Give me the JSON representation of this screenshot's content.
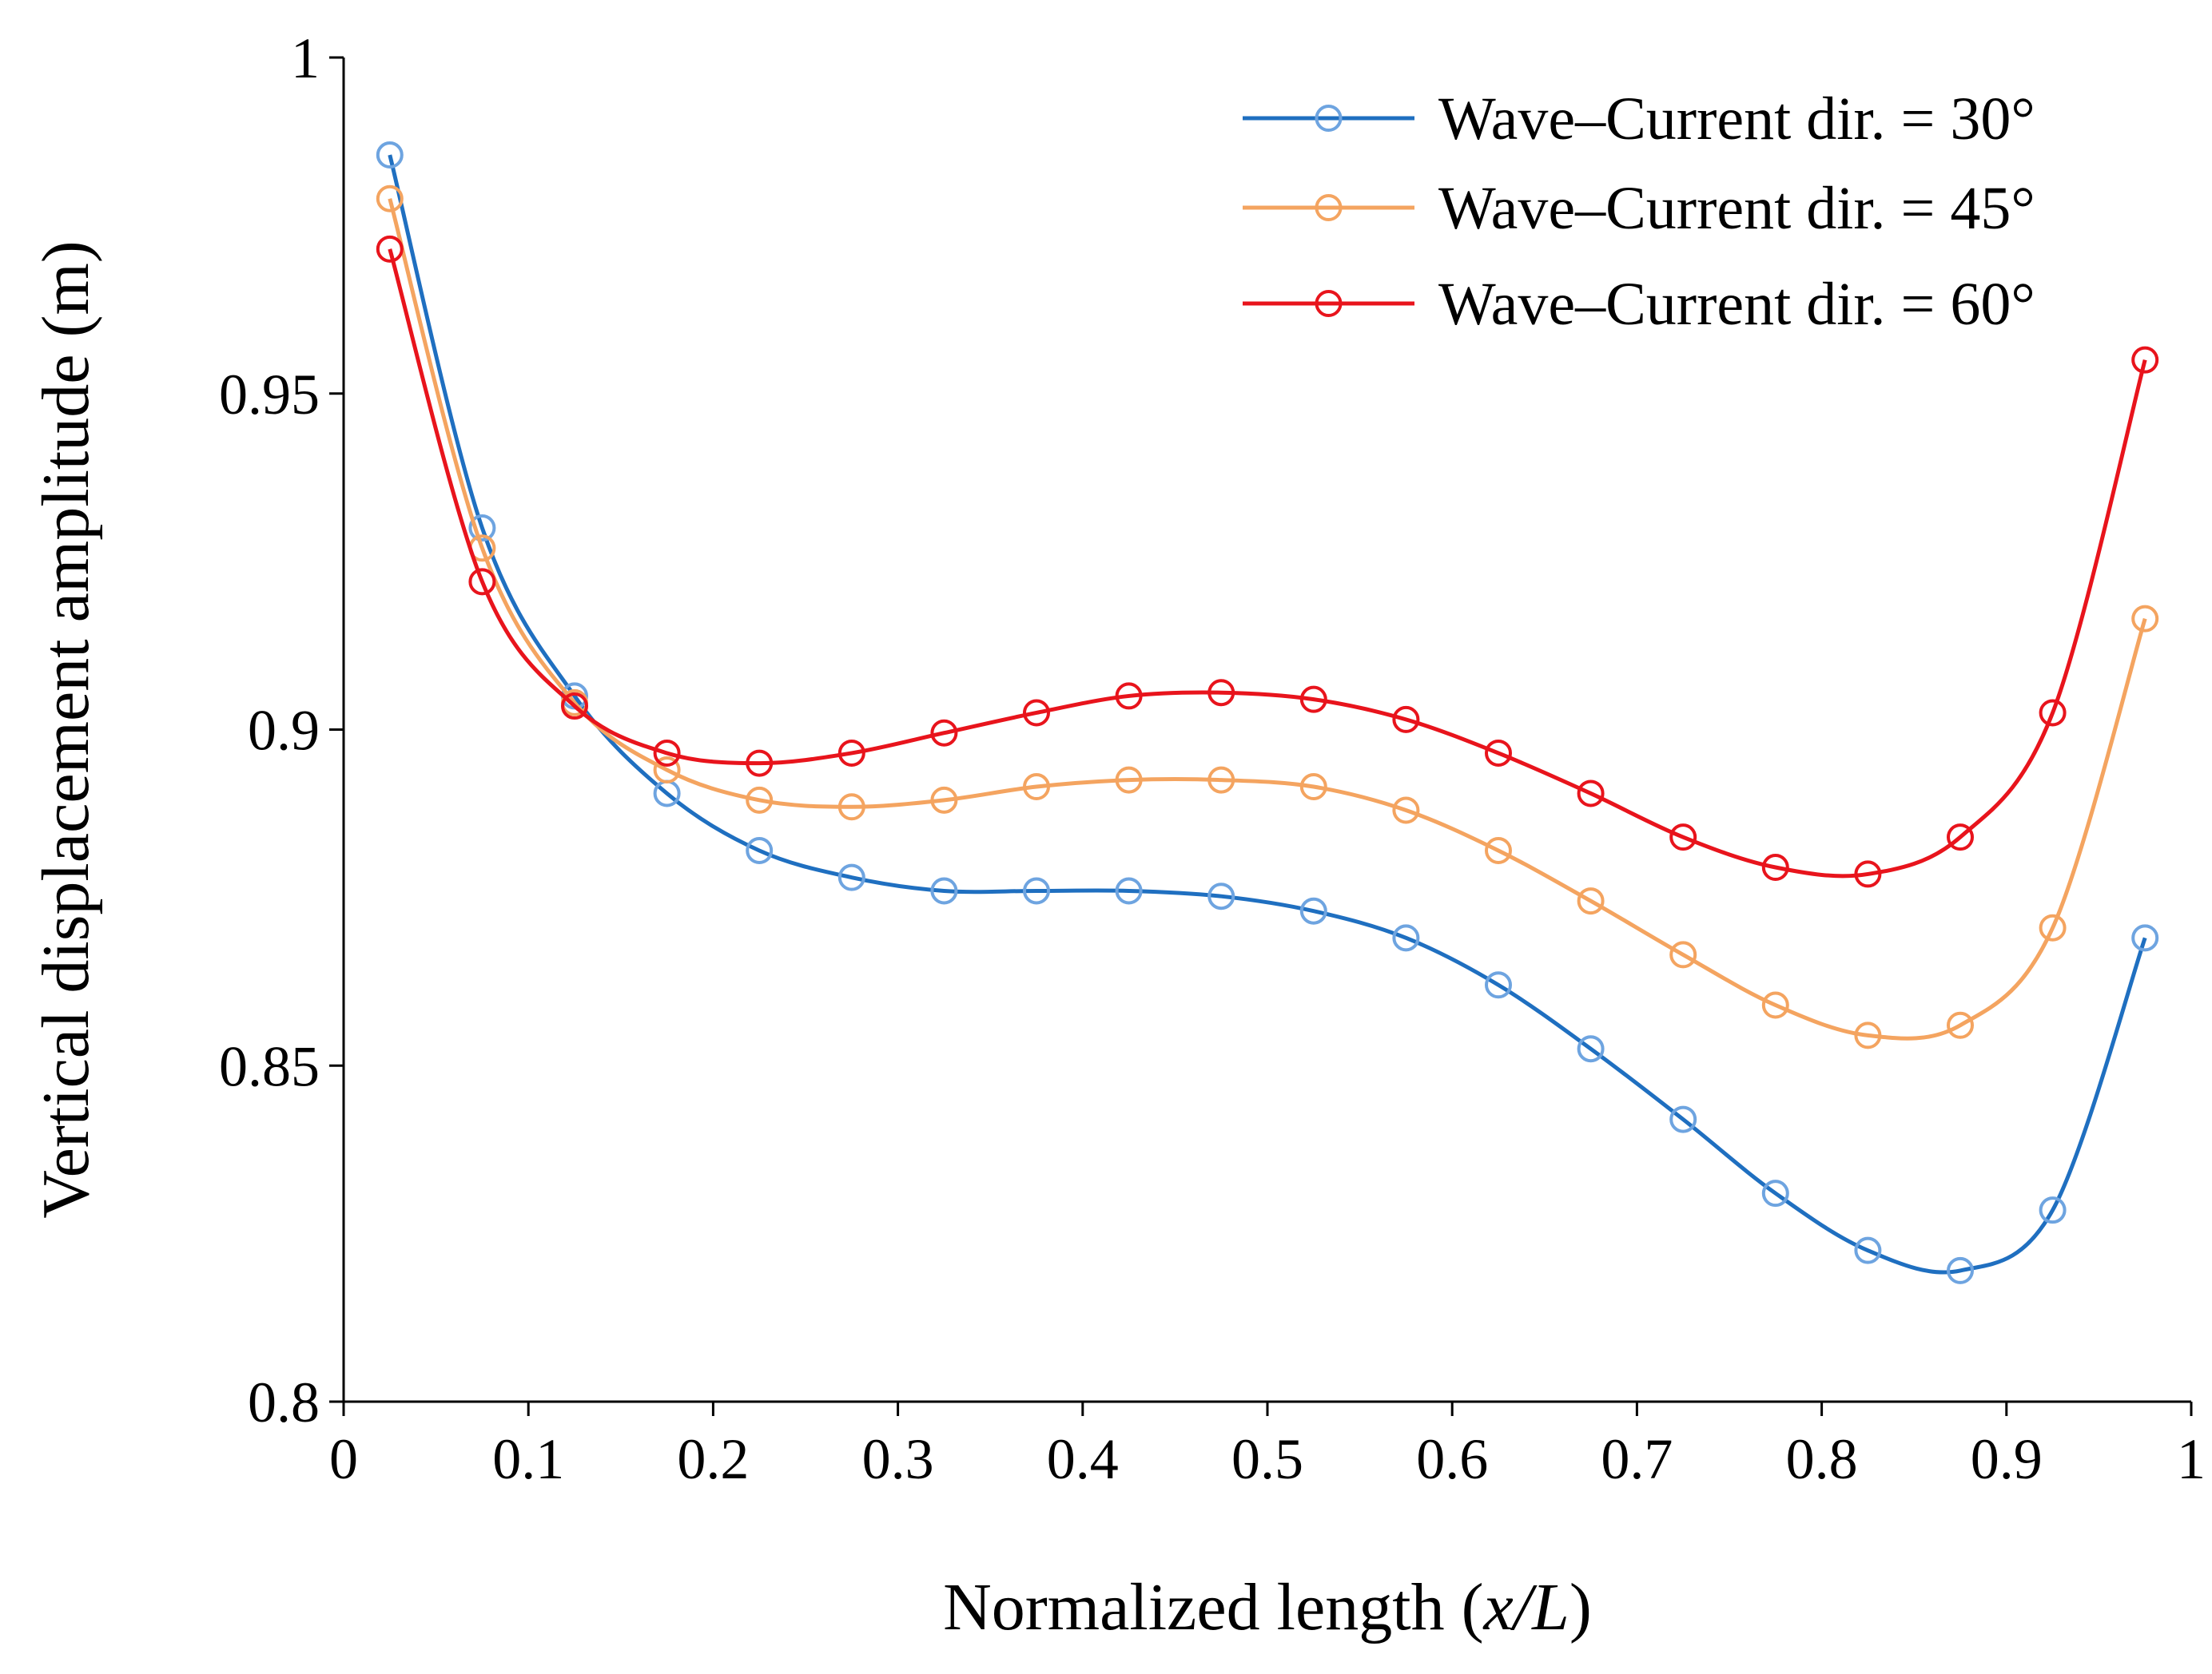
{
  "chart_data": {
    "type": "line",
    "title": "",
    "xlabel_prefix": "Normalized length (",
    "xlabel_var": "x/L",
    "xlabel_suffix": ")",
    "ylabel": "Vertical displacement amplitude (m)",
    "xlim": [
      0,
      1
    ],
    "ylim": [
      0.8,
      1
    ],
    "x_ticks": [
      0,
      0.1,
      0.2,
      0.3,
      0.4,
      0.5,
      0.6,
      0.7,
      0.8,
      0.9,
      1
    ],
    "x_tick_labels": [
      "0",
      "0.1",
      "0.2",
      "0.3",
      "0.4",
      "0.5",
      "0.6",
      "0.7",
      "0.8",
      "0.9",
      "1"
    ],
    "y_ticks": [
      0.8,
      0.85,
      0.9,
      0.95,
      1
    ],
    "y_tick_labels": [
      "0.8",
      "0.85",
      "0.9",
      "0.95",
      "1"
    ],
    "grid": false,
    "legend_position": "top-right",
    "x": [
      0.025,
      0.075,
      0.125,
      0.175,
      0.225,
      0.275,
      0.325,
      0.375,
      0.425,
      0.475,
      0.525,
      0.575,
      0.625,
      0.675,
      0.725,
      0.775,
      0.825,
      0.875,
      0.925,
      0.975
    ],
    "series": [
      {
        "name": "Wave–Current dir. = 30°",
        "color": "#1f6fc0",
        "marker_color": "#6ea4e0",
        "values": [
          0.9855,
          0.93,
          0.905,
          0.8905,
          0.882,
          0.878,
          0.876,
          0.876,
          0.876,
          0.8752,
          0.873,
          0.869,
          0.862,
          0.8525,
          0.842,
          0.831,
          0.8225,
          0.8195,
          0.8285,
          0.869
        ]
      },
      {
        "name": "Wave–Current dir. = 45°",
        "color": "#f4a460",
        "marker_color": "#f4a460",
        "values": [
          0.979,
          0.927,
          0.904,
          0.894,
          0.8895,
          0.8885,
          0.8895,
          0.8915,
          0.8925,
          0.8925,
          0.8915,
          0.888,
          0.882,
          0.8745,
          0.8665,
          0.859,
          0.8545,
          0.856,
          0.8705,
          0.9165
        ]
      },
      {
        "name": "Wave–Current dir. = 60°",
        "color": "#e8141c",
        "marker_color": "#e8141c",
        "values": [
          0.9715,
          0.922,
          0.9035,
          0.8965,
          0.895,
          0.8965,
          0.8995,
          0.9025,
          0.905,
          0.9055,
          0.9045,
          0.9015,
          0.8965,
          0.8905,
          0.884,
          0.8795,
          0.8785,
          0.884,
          0.9025,
          0.955
        ]
      }
    ]
  }
}
